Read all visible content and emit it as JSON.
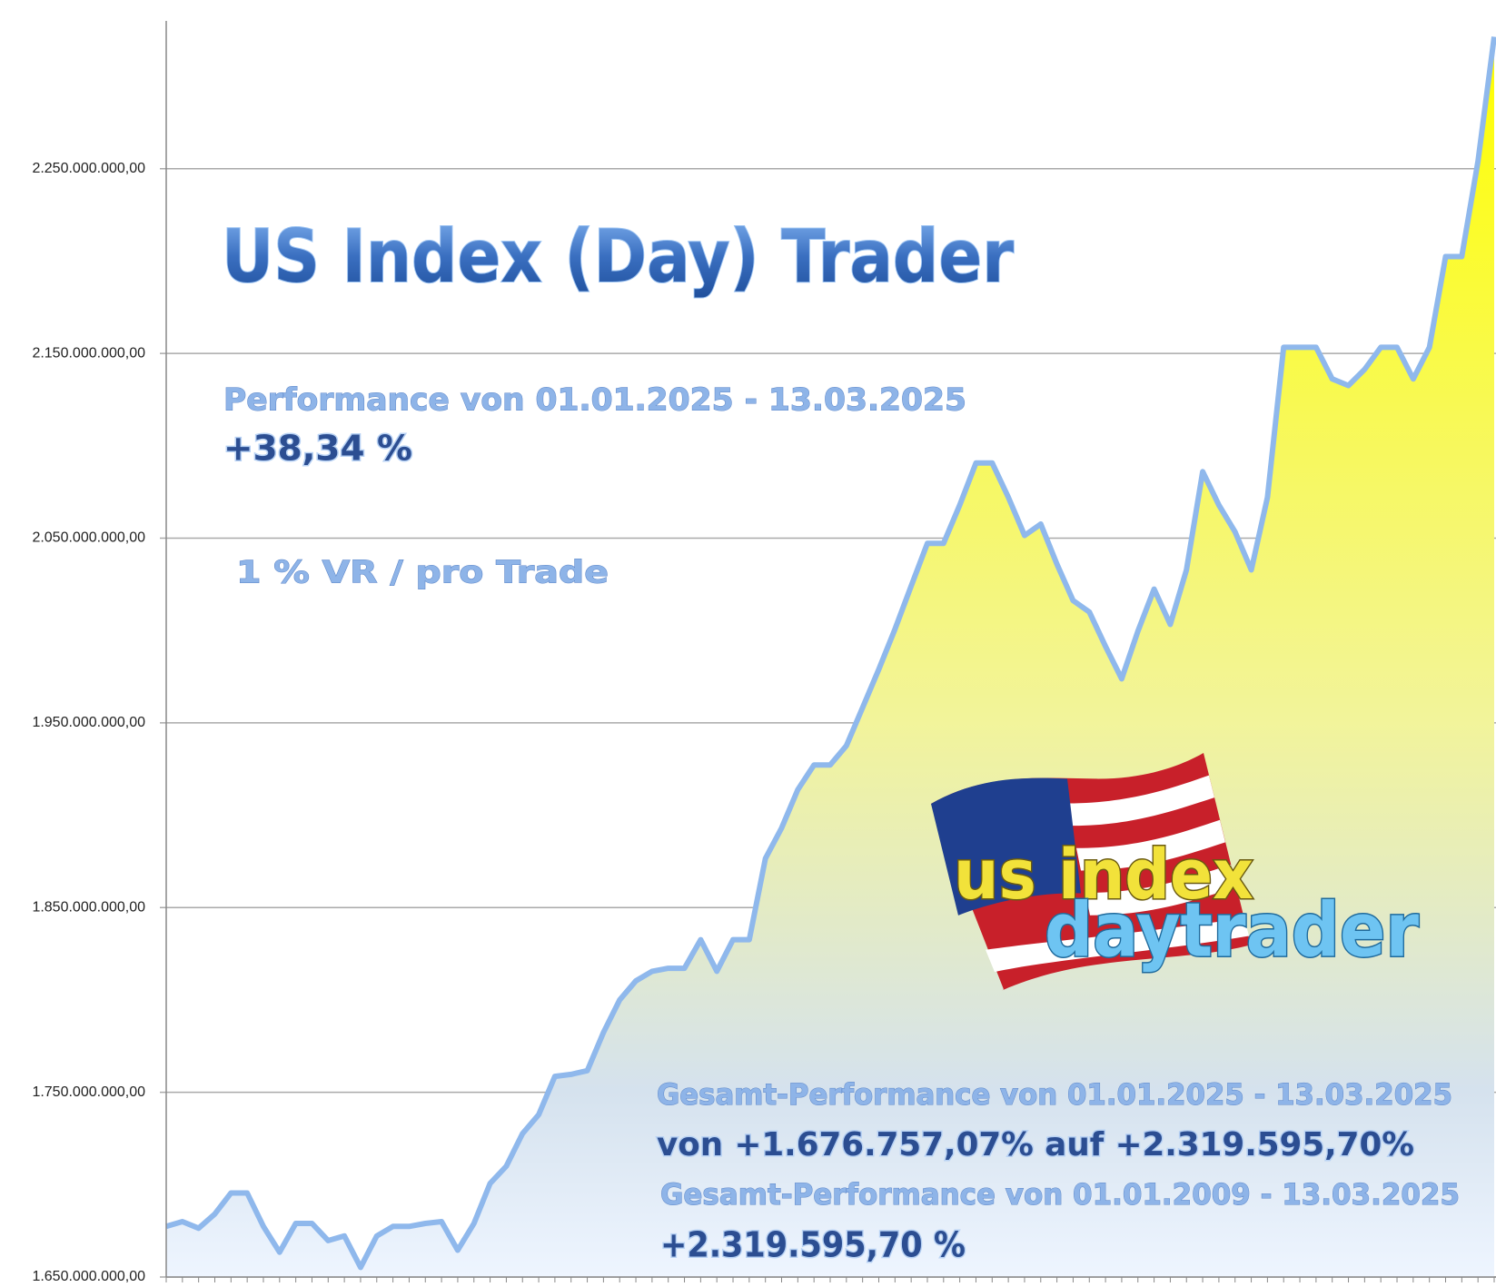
{
  "chart_data": {
    "type": "area",
    "title": "US Index (Day) Trader",
    "annotations": [
      "Performance  von  01.01.2025 - 13.03.2025",
      "+38,34 %",
      "1 % VR / pro Trade",
      "Gesamt-Performance  von  01.01.2025 - 13.03.2025",
      "von +1.676.757,07% auf  +2.319.595,70%",
      "Gesamt-Performance  von  01.01.2009 - 13.03.2025",
      "+2.319.595,70 %",
      "us index",
      "daytrader"
    ],
    "categories": [
      null,
      null,
      null,
      null,
      null,
      null,
      null,
      null,
      null,
      null,
      null,
      null,
      null,
      null,
      null,
      null,
      null,
      null,
      null,
      null,
      null,
      null,
      null,
      null,
      null,
      null,
      null,
      null,
      null,
      null,
      null,
      null,
      null,
      null,
      null,
      null,
      null,
      null,
      null,
      null,
      null,
      null,
      null,
      null,
      null,
      null,
      null,
      null,
      null,
      null,
      null,
      null,
      null,
      null,
      null,
      null,
      null,
      null,
      null,
      null,
      null,
      null,
      null,
      null,
      null,
      null,
      null,
      null,
      null,
      null,
      null,
      null,
      null,
      null,
      null,
      null,
      null,
      null,
      null,
      null,
      null,
      null,
      null
    ],
    "values": [
      1677400000,
      1680000000,
      1676400000,
      1684100000,
      1695500000,
      1695500000,
      1677400000,
      1663400000,
      1679000000,
      1679000000,
      1669700000,
      1672200000,
      1655200000,
      1672200000,
      1677400000,
      1677400000,
      1679000000,
      1680000000,
      1664500000,
      1679000000,
      1700700000,
      1710000000,
      1727600000,
      1737900000,
      1758600000,
      1759700000,
      1761700000,
      1782400000,
      1800000000,
      1810300000,
      1815500000,
      1817100000,
      1817100000,
      1832600000,
      1815500000,
      1832600000,
      1832600000,
      1876600000,
      1893100000,
      1913800000,
      1927200000,
      1927200000,
      1937600000,
      1958300000,
      1979000000,
      2000700000,
      2024000000,
      2047200000,
      2047200000,
      2067900000,
      2090700000,
      2090700000,
      2072100000,
      2051400000,
      2057600000,
      2035900000,
      2016200000,
      2010000000,
      1991400000,
      1973800000,
      1999700000,
      2022400000,
      2003300000,
      2032800000,
      2086000000,
      2067900000,
      2053400000,
      2032800000,
      2072100000,
      2153300000,
      2153300000,
      2153300000,
      2136200000,
      2132600000,
      2141400000,
      2153300000,
      2153300000,
      2136200000,
      2153300000,
      2202400000,
      2202400000,
      2254100000,
      2321400000
    ],
    "color": "#8fb8ec",
    "ylim": [
      1650000000,
      2330000000
    ],
    "yticks": [
      {
        "value": 1650000000,
        "label": "1.650.000.000,00"
      },
      {
        "value": 1750000000,
        "label": "1.750.000.000,00"
      },
      {
        "value": 1850000000,
        "label": "1.850.000.000,00"
      },
      {
        "value": 1950000000,
        "label": "1.950.000.000,00"
      },
      {
        "value": 2050000000,
        "label": "2.050.000.000,00"
      },
      {
        "value": 2150000000,
        "label": "2.150.000.000,00"
      },
      {
        "value": 2250000000,
        "label": "2.250.000.000,00"
      }
    ],
    "grid": true
  }
}
